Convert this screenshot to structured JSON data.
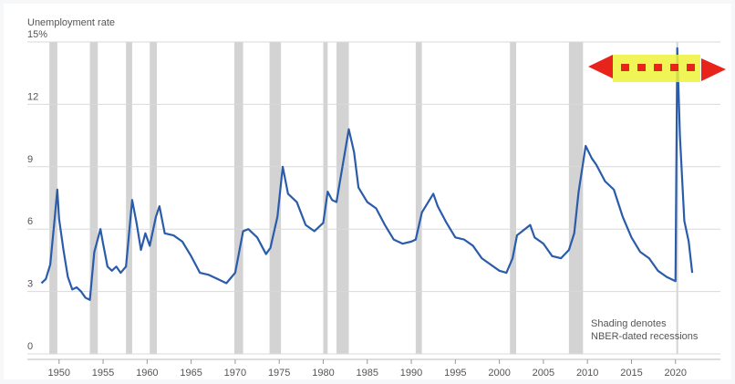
{
  "chart_data": {
    "type": "line",
    "ylabel": "Unemployment rate",
    "annotation": [
      "Shading denotes",
      "NBER-dated recessions"
    ],
    "color": "#2a5caa",
    "recession_color": "#d3d3d3",
    "grid": true,
    "xlim": [
      1946.4,
      2025.1
    ],
    "ylim": [
      0,
      15
    ],
    "xticks": [
      1950,
      1955,
      1960,
      1965,
      1970,
      1975,
      1980,
      1985,
      1990,
      1995,
      2000,
      2005,
      2010,
      2015,
      2020
    ],
    "yticks": [
      0,
      3,
      6,
      9,
      12,
      {
        "value": 15,
        "label": "15%"
      }
    ],
    "recessions": [
      [
        1948.9,
        1949.8
      ],
      [
        1953.5,
        1954.4
      ],
      [
        1957.6,
        1958.3
      ],
      [
        1960.3,
        1961.1
      ],
      [
        1969.9,
        1970.9
      ],
      [
        1973.9,
        1975.2
      ],
      [
        1980.0,
        1980.5
      ],
      [
        1981.5,
        1982.9
      ],
      [
        1990.5,
        1991.2
      ],
      [
        2001.2,
        2001.9
      ],
      [
        2007.9,
        2009.5
      ],
      [
        2020.1,
        2020.3
      ]
    ],
    "x": [
      1948.0,
      1948.5,
      1949.0,
      1949.5,
      1949.8,
      1950.0,
      1950.5,
      1951.0,
      1951.5,
      1952.0,
      1952.5,
      1953.0,
      1953.5,
      1954.0,
      1954.7,
      1955.0,
      1955.5,
      1956.0,
      1956.5,
      1957.0,
      1957.6,
      1958.3,
      1958.8,
      1959.3,
      1959.8,
      1960.3,
      1961.0,
      1961.4,
      1962.0,
      1963.0,
      1964.0,
      1965.0,
      1966.0,
      1967.0,
      1968.0,
      1969.0,
      1970.0,
      1970.9,
      1971.5,
      1972.5,
      1973.5,
      1974.0,
      1974.8,
      1975.4,
      1976.0,
      1977.0,
      1978.0,
      1979.0,
      1980.0,
      1980.5,
      1981.0,
      1981.5,
      1982.9,
      1983.5,
      1984.0,
      1985.0,
      1986.0,
      1987.0,
      1988.0,
      1989.0,
      1990.0,
      1990.5,
      1991.2,
      1992.5,
      1993.0,
      1994.0,
      1995.0,
      1996.0,
      1997.0,
      1998.0,
      1999.0,
      2000.0,
      2000.8,
      2001.5,
      2002.0,
      2003.5,
      2004.0,
      2005.0,
      2006.0,
      2007.0,
      2007.9,
      2008.5,
      2009.0,
      2009.8,
      2010.5,
      2011.0,
      2012.0,
      2013.0,
      2014.0,
      2015.0,
      2016.0,
      2017.0,
      2018.0,
      2019.0,
      2020.0,
      2020.2,
      2020.5,
      2021.0,
      2021.5,
      2021.9
    ],
    "values": [
      3.4,
      3.6,
      4.3,
      6.5,
      7.9,
      6.5,
      5.0,
      3.7,
      3.1,
      3.2,
      3.0,
      2.7,
      2.6,
      4.9,
      6.0,
      5.3,
      4.2,
      4.0,
      4.2,
      3.9,
      4.2,
      7.4,
      6.3,
      5.0,
      5.8,
      5.2,
      6.6,
      7.1,
      5.8,
      5.7,
      5.4,
      4.7,
      3.9,
      3.8,
      3.6,
      3.4,
      3.9,
      5.9,
      6.0,
      5.6,
      4.8,
      5.1,
      6.6,
      9.0,
      7.7,
      7.3,
      6.2,
      5.9,
      6.3,
      7.8,
      7.4,
      7.3,
      10.8,
      9.7,
      8.0,
      7.3,
      7.0,
      6.2,
      5.5,
      5.3,
      5.4,
      5.5,
      6.8,
      7.7,
      7.1,
      6.3,
      5.6,
      5.5,
      5.2,
      4.6,
      4.3,
      4.0,
      3.9,
      4.6,
      5.7,
      6.2,
      5.6,
      5.3,
      4.7,
      4.6,
      5.0,
      5.8,
      7.8,
      10.0,
      9.4,
      9.1,
      8.3,
      7.9,
      6.6,
      5.6,
      4.9,
      4.6,
      4.0,
      3.7,
      3.5,
      14.7,
      10.5,
      6.4,
      5.4,
      3.9
    ]
  }
}
